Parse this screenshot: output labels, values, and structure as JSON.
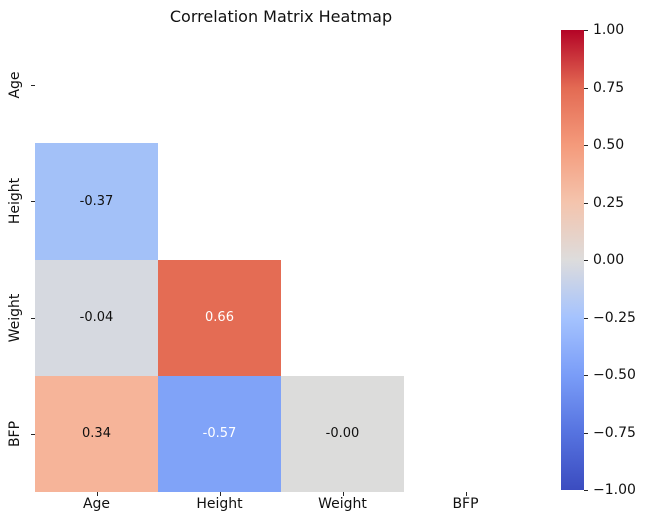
{
  "figure": {
    "background": "#ffffff"
  },
  "chart_data": {
    "type": "heatmap",
    "title": "Correlation Matrix Heatmap",
    "variables": [
      "Age",
      "Height",
      "Weight",
      "BFP"
    ],
    "x_tick_labels": [
      "Age",
      "Height",
      "Weight",
      "BFP"
    ],
    "y_tick_labels": [
      "Age",
      "Height",
      "Weight",
      "BFP"
    ],
    "mask": "upper-triangle-including-diagonal",
    "colormap": "coolwarm",
    "vmin": -1.0,
    "vmax": 1.0,
    "annotation_format": ".2f",
    "cells": [
      {
        "row": 1,
        "col": 0,
        "row_label": "Height",
        "col_label": "Age",
        "value": -0.37,
        "label": "-0.37",
        "bg": "#a3c1f8",
        "fg": "#111111"
      },
      {
        "row": 2,
        "col": 0,
        "row_label": "Weight",
        "col_label": "Age",
        "value": -0.04,
        "label": "-0.04",
        "bg": "#d6d9e0",
        "fg": "#111111"
      },
      {
        "row": 2,
        "col": 1,
        "row_label": "Weight",
        "col_label": "Height",
        "value": 0.66,
        "label": "0.66",
        "bg": "#e46c54",
        "fg": "#ffffff"
      },
      {
        "row": 3,
        "col": 0,
        "row_label": "BFP",
        "col_label": "Age",
        "value": 0.34,
        "label": "0.34",
        "bg": "#f6b499",
        "fg": "#111111"
      },
      {
        "row": 3,
        "col": 1,
        "row_label": "BFP",
        "col_label": "Height",
        "value": -0.57,
        "label": "-0.57",
        "bg": "#80a3f8",
        "fg": "#ffffff"
      },
      {
        "row": 3,
        "col": 2,
        "row_label": "BFP",
        "col_label": "Weight",
        "value": -0.0,
        "label": "-0.00",
        "bg": "#dcdcdb",
        "fg": "#111111"
      }
    ],
    "colorbar": {
      "tick_labels": [
        "1.00",
        "0.75",
        "0.50",
        "0.25",
        "0.00",
        "−0.25",
        "−0.50",
        "−0.75",
        "−1.00"
      ],
      "gradient_stops": [
        "#b40426",
        "#e36a53",
        "#f49a7b",
        "#f4c4ad",
        "#dddcdc",
        "#a5c3fe",
        "#7a9df8",
        "#5673e0",
        "#3b4cc0"
      ]
    }
  }
}
